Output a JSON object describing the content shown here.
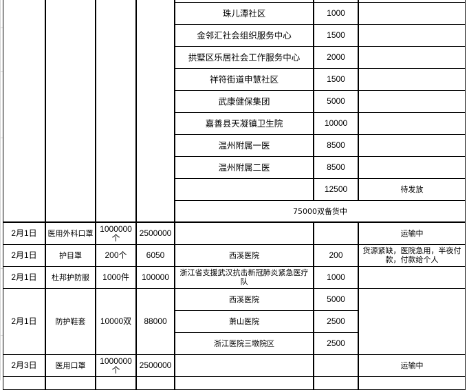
{
  "sheet": {
    "upper_rows": [
      {
        "recipient": "",
        "qty": "",
        "status": ""
      },
      {
        "recipient": "珠儿潭社区",
        "qty": "1000",
        "status": ""
      },
      {
        "recipient": "金邻汇社会组织服务中心",
        "qty": "1500",
        "status": ""
      },
      {
        "recipient": "拱墅区乐居社会工作服务中心",
        "qty": "2000",
        "status": ""
      },
      {
        "recipient": "祥符街道申慧社区",
        "qty": "1500",
        "status": ""
      },
      {
        "recipient": "武康健保集团",
        "qty": "5000",
        "status": ""
      },
      {
        "recipient": "嘉善县天凝镇卫生院",
        "qty": "10000",
        "status": ""
      },
      {
        "recipient": "温州附属一医",
        "qty": "8500",
        "status": ""
      },
      {
        "recipient": "温州附属二医",
        "qty": "8500",
        "status": ""
      },
      {
        "recipient": "",
        "qty": "12500",
        "status": "待发放"
      }
    ],
    "stock_note": "75000双备货中",
    "rows": [
      {
        "date": "2月1日",
        "item": "医用外科口罩",
        "quantity": "1000000个",
        "amount": "2500000",
        "recipients": [
          {
            "name": "",
            "qty": ""
          }
        ],
        "status": "运输中"
      },
      {
        "date": "2月1日",
        "item": "护目罩",
        "quantity": "200个",
        "amount": "6050",
        "recipients": [
          {
            "name": "西溪医院",
            "qty": "200"
          }
        ],
        "status": "货源紧缺，医院急用，半夜付款，付款给个人"
      },
      {
        "date": "2月1日",
        "item": "杜邦护防服",
        "quantity": "1000件",
        "amount": "100000",
        "recipients": [
          {
            "name": "浙江省支援武汉抗击新冠肺炎紧急医疗队",
            "qty": "1000"
          }
        ],
        "status": ""
      },
      {
        "date": "2月1日",
        "item": "防护鞋套",
        "quantity": "10000双",
        "amount": "88000",
        "recipients": [
          {
            "name": "西溪医院",
            "qty": "5000"
          },
          {
            "name": "萧山医院",
            "qty": "2500"
          },
          {
            "name": "浙江医院三墩院区",
            "qty": "2500"
          }
        ],
        "status": ""
      },
      {
        "date": "2月3日",
        "item": "医用口罩",
        "quantity": "1000000个",
        "amount": "2500000",
        "recipients": [
          {
            "name": "",
            "qty": ""
          }
        ],
        "status": "运输中"
      }
    ]
  }
}
